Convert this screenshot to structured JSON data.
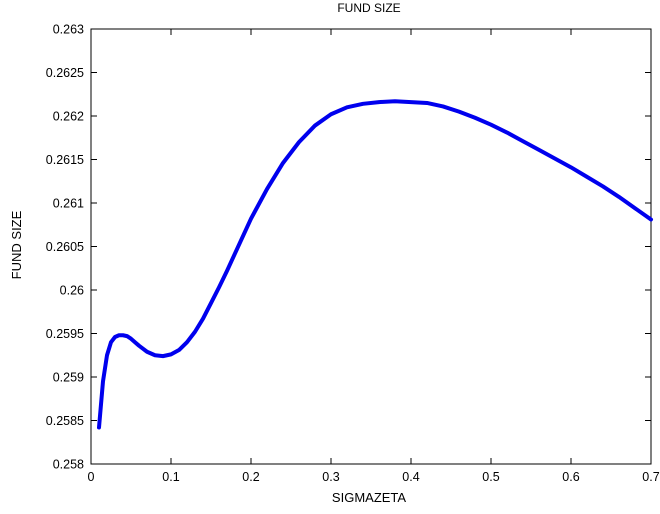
{
  "chart_data": {
    "type": "line",
    "title": "FUND SIZE",
    "xlabel": "SIGMAZETA",
    "ylabel": "FUND SIZE",
    "xlim": [
      0,
      0.7
    ],
    "ylim": [
      0.258,
      0.263
    ],
    "xticks": [
      0,
      0.1,
      0.2,
      0.3,
      0.4,
      0.5,
      0.6,
      0.7
    ],
    "xtick_labels": [
      "0",
      "0.1",
      "0.2",
      "0.3",
      "0.4",
      "0.5",
      "0.6",
      "0.7"
    ],
    "yticks": [
      0.258,
      0.2585,
      0.259,
      0.2595,
      0.26,
      0.2605,
      0.261,
      0.2615,
      0.262,
      0.2625,
      0.263
    ],
    "ytick_labels": [
      "0.258",
      "0.2585",
      "0.259",
      "0.2595",
      "0.26",
      "0.2605",
      "0.261",
      "0.2615",
      "0.262",
      "0.2625",
      "0.263"
    ],
    "grid": false,
    "series": [
      {
        "color": "#0000ee",
        "x": [
          0.01,
          0.015,
          0.02,
          0.025,
          0.03,
          0.035,
          0.04,
          0.045,
          0.05,
          0.055,
          0.06,
          0.07,
          0.08,
          0.09,
          0.1,
          0.11,
          0.12,
          0.13,
          0.14,
          0.15,
          0.16,
          0.17,
          0.18,
          0.19,
          0.2,
          0.22,
          0.24,
          0.26,
          0.28,
          0.3,
          0.32,
          0.34,
          0.36,
          0.38,
          0.4,
          0.42,
          0.44,
          0.46,
          0.48,
          0.5,
          0.52,
          0.54,
          0.56,
          0.58,
          0.6,
          0.62,
          0.64,
          0.66,
          0.68,
          0.7
        ],
        "y": [
          0.25842,
          0.25895,
          0.25925,
          0.2594,
          0.25946,
          0.25948,
          0.25948,
          0.25947,
          0.25944,
          0.2594,
          0.25936,
          0.25929,
          0.25925,
          0.25924,
          0.25926,
          0.25931,
          0.2594,
          0.25952,
          0.25967,
          0.25985,
          0.26003,
          0.26022,
          0.26042,
          0.26062,
          0.26082,
          0.26116,
          0.26146,
          0.2617,
          0.26189,
          0.26202,
          0.2621,
          0.26214,
          0.26216,
          0.26217,
          0.26216,
          0.26215,
          0.26211,
          0.26205,
          0.26198,
          0.2619,
          0.26181,
          0.26171,
          0.26161,
          0.26151,
          0.26141,
          0.2613,
          0.26119,
          0.26107,
          0.26094,
          0.26081
        ]
      }
    ]
  }
}
